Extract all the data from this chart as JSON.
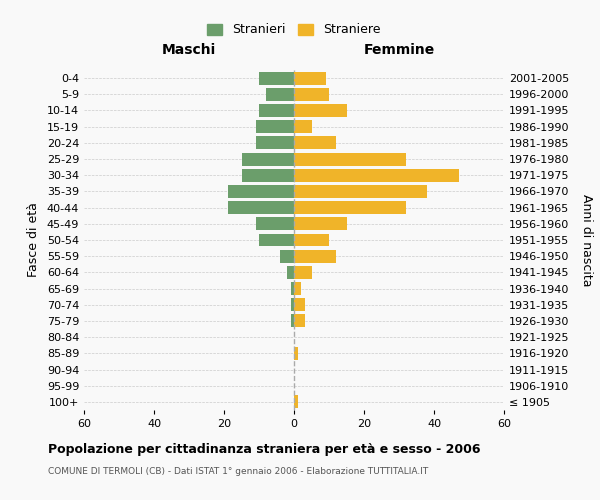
{
  "age_groups": [
    "100+",
    "95-99",
    "90-94",
    "85-89",
    "80-84",
    "75-79",
    "70-74",
    "65-69",
    "60-64",
    "55-59",
    "50-54",
    "45-49",
    "40-44",
    "35-39",
    "30-34",
    "25-29",
    "20-24",
    "15-19",
    "10-14",
    "5-9",
    "0-4"
  ],
  "birth_years": [
    "≤ 1905",
    "1906-1910",
    "1911-1915",
    "1916-1920",
    "1921-1925",
    "1926-1930",
    "1931-1935",
    "1936-1940",
    "1941-1945",
    "1946-1950",
    "1951-1955",
    "1956-1960",
    "1961-1965",
    "1966-1970",
    "1971-1975",
    "1976-1980",
    "1981-1985",
    "1986-1990",
    "1991-1995",
    "1996-2000",
    "2001-2005"
  ],
  "males": [
    0,
    0,
    0,
    0,
    0,
    1,
    1,
    1,
    2,
    4,
    10,
    11,
    19,
    19,
    15,
    15,
    11,
    11,
    10,
    8,
    10
  ],
  "females": [
    1,
    0,
    0,
    1,
    0,
    3,
    3,
    2,
    5,
    12,
    10,
    15,
    32,
    38,
    47,
    32,
    12,
    5,
    15,
    10,
    9
  ],
  "male_color": "#6b9e6b",
  "female_color": "#f0b429",
  "background_color": "#f9f9f9",
  "grid_color": "#cccccc",
  "title": "Popolazione per cittadinanza straniera per età e sesso - 2006",
  "subtitle": "COMUNE DI TERMOLI (CB) - Dati ISTAT 1° gennaio 2006 - Elaborazione TUTTITALIA.IT",
  "xlabel_left": "Maschi",
  "xlabel_right": "Femmine",
  "ylabel_left": "Fasce di età",
  "ylabel_right": "Anni di nascita",
  "legend_male": "Stranieri",
  "legend_female": "Straniere",
  "xlim": 60,
  "bar_height": 0.8
}
